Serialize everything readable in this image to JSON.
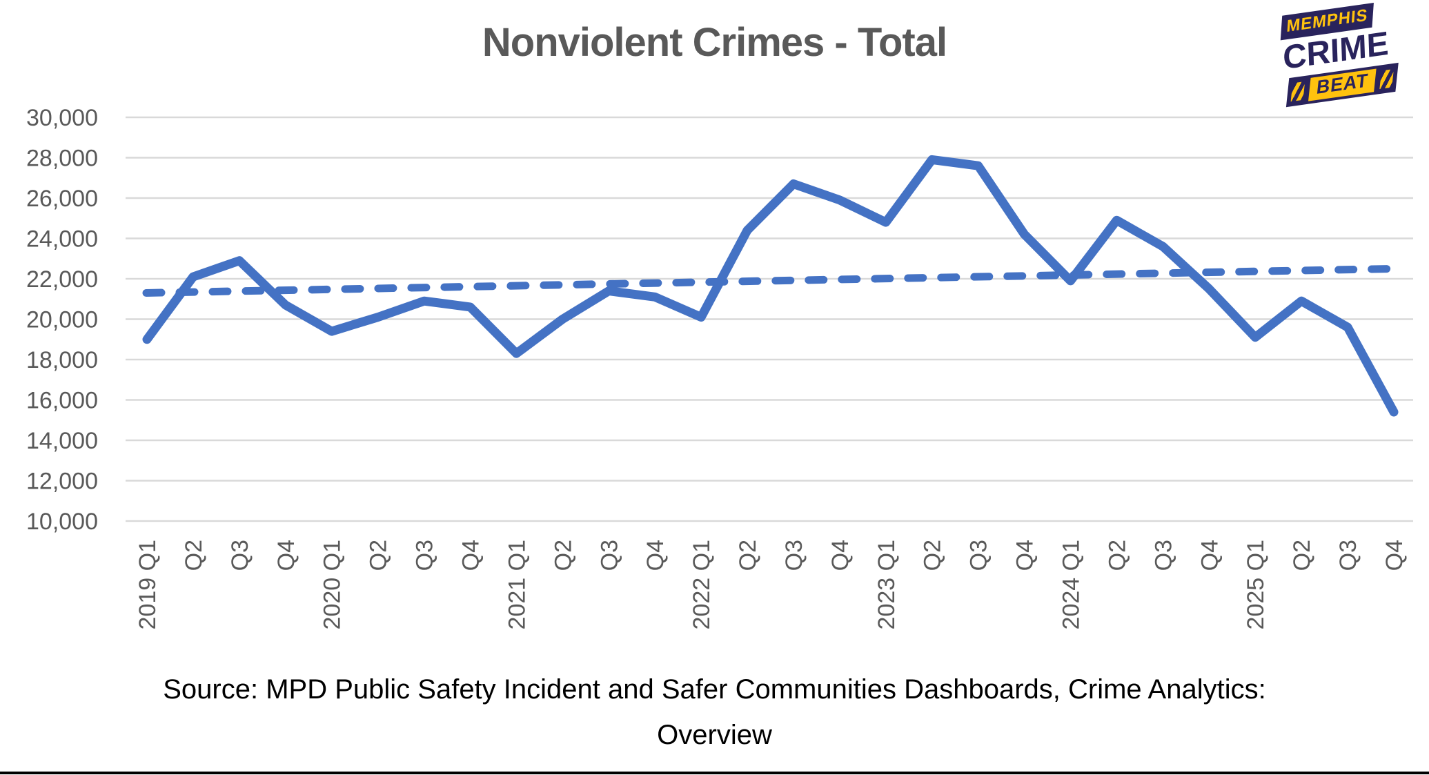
{
  "title": "Nonviolent Crimes - Total",
  "logo": {
    "top": "MEMPHIS",
    "middle": "CRIME",
    "bottom": "BEAT"
  },
  "source": {
    "lines": [
      "Source: MPD Public Safety Incident and Safer Communities Dashboards, Crime Analytics:",
      "Overview"
    ]
  },
  "colors": {
    "series_blue": "#4472C4",
    "trendline_blue": "#4472C4",
    "gridline": "#D9D9D9",
    "axis_text": "#595959",
    "title_text": "#595959",
    "source_text": "#000000",
    "logo_navy": "#29235C",
    "logo_yellow": "#FFC20E",
    "divider": "#000000"
  },
  "chart_data": {
    "type": "line",
    "title": "Nonviolent Crimes - Total",
    "x_labels": [
      "2019 Q1",
      "Q2",
      "Q3",
      "Q4",
      "2020 Q1",
      "Q2",
      "Q3",
      "Q4",
      "2021 Q1",
      "Q2",
      "Q3",
      "Q4",
      "2022 Q1",
      "Q2",
      "Q3",
      "Q4",
      "2023 Q1",
      "Q2",
      "Q3",
      "Q4",
      "2024 Q1",
      "Q2",
      "Q3",
      "Q4",
      "2025 Q1",
      "Q2",
      "Q3",
      "Q4"
    ],
    "series": [
      {
        "name": "Nonviolent crimes total",
        "values": [
          19000,
          22100,
          22900,
          20700,
          19400,
          20100,
          20900,
          20600,
          18300,
          20000,
          21400,
          21100,
          20100,
          24400,
          26700,
          25900,
          24800,
          27900,
          27600,
          24200,
          21900,
          24900,
          23600,
          21500,
          19100,
          20900,
          19600,
          15400
        ]
      }
    ],
    "trendline": {
      "style": "dashed",
      "start_value": 21300,
      "end_value": 22500
    },
    "ylim": [
      10000,
      30000
    ],
    "ytick_step": 2000,
    "grid": true,
    "legend": "none",
    "xlabel": "",
    "ylabel": ""
  }
}
